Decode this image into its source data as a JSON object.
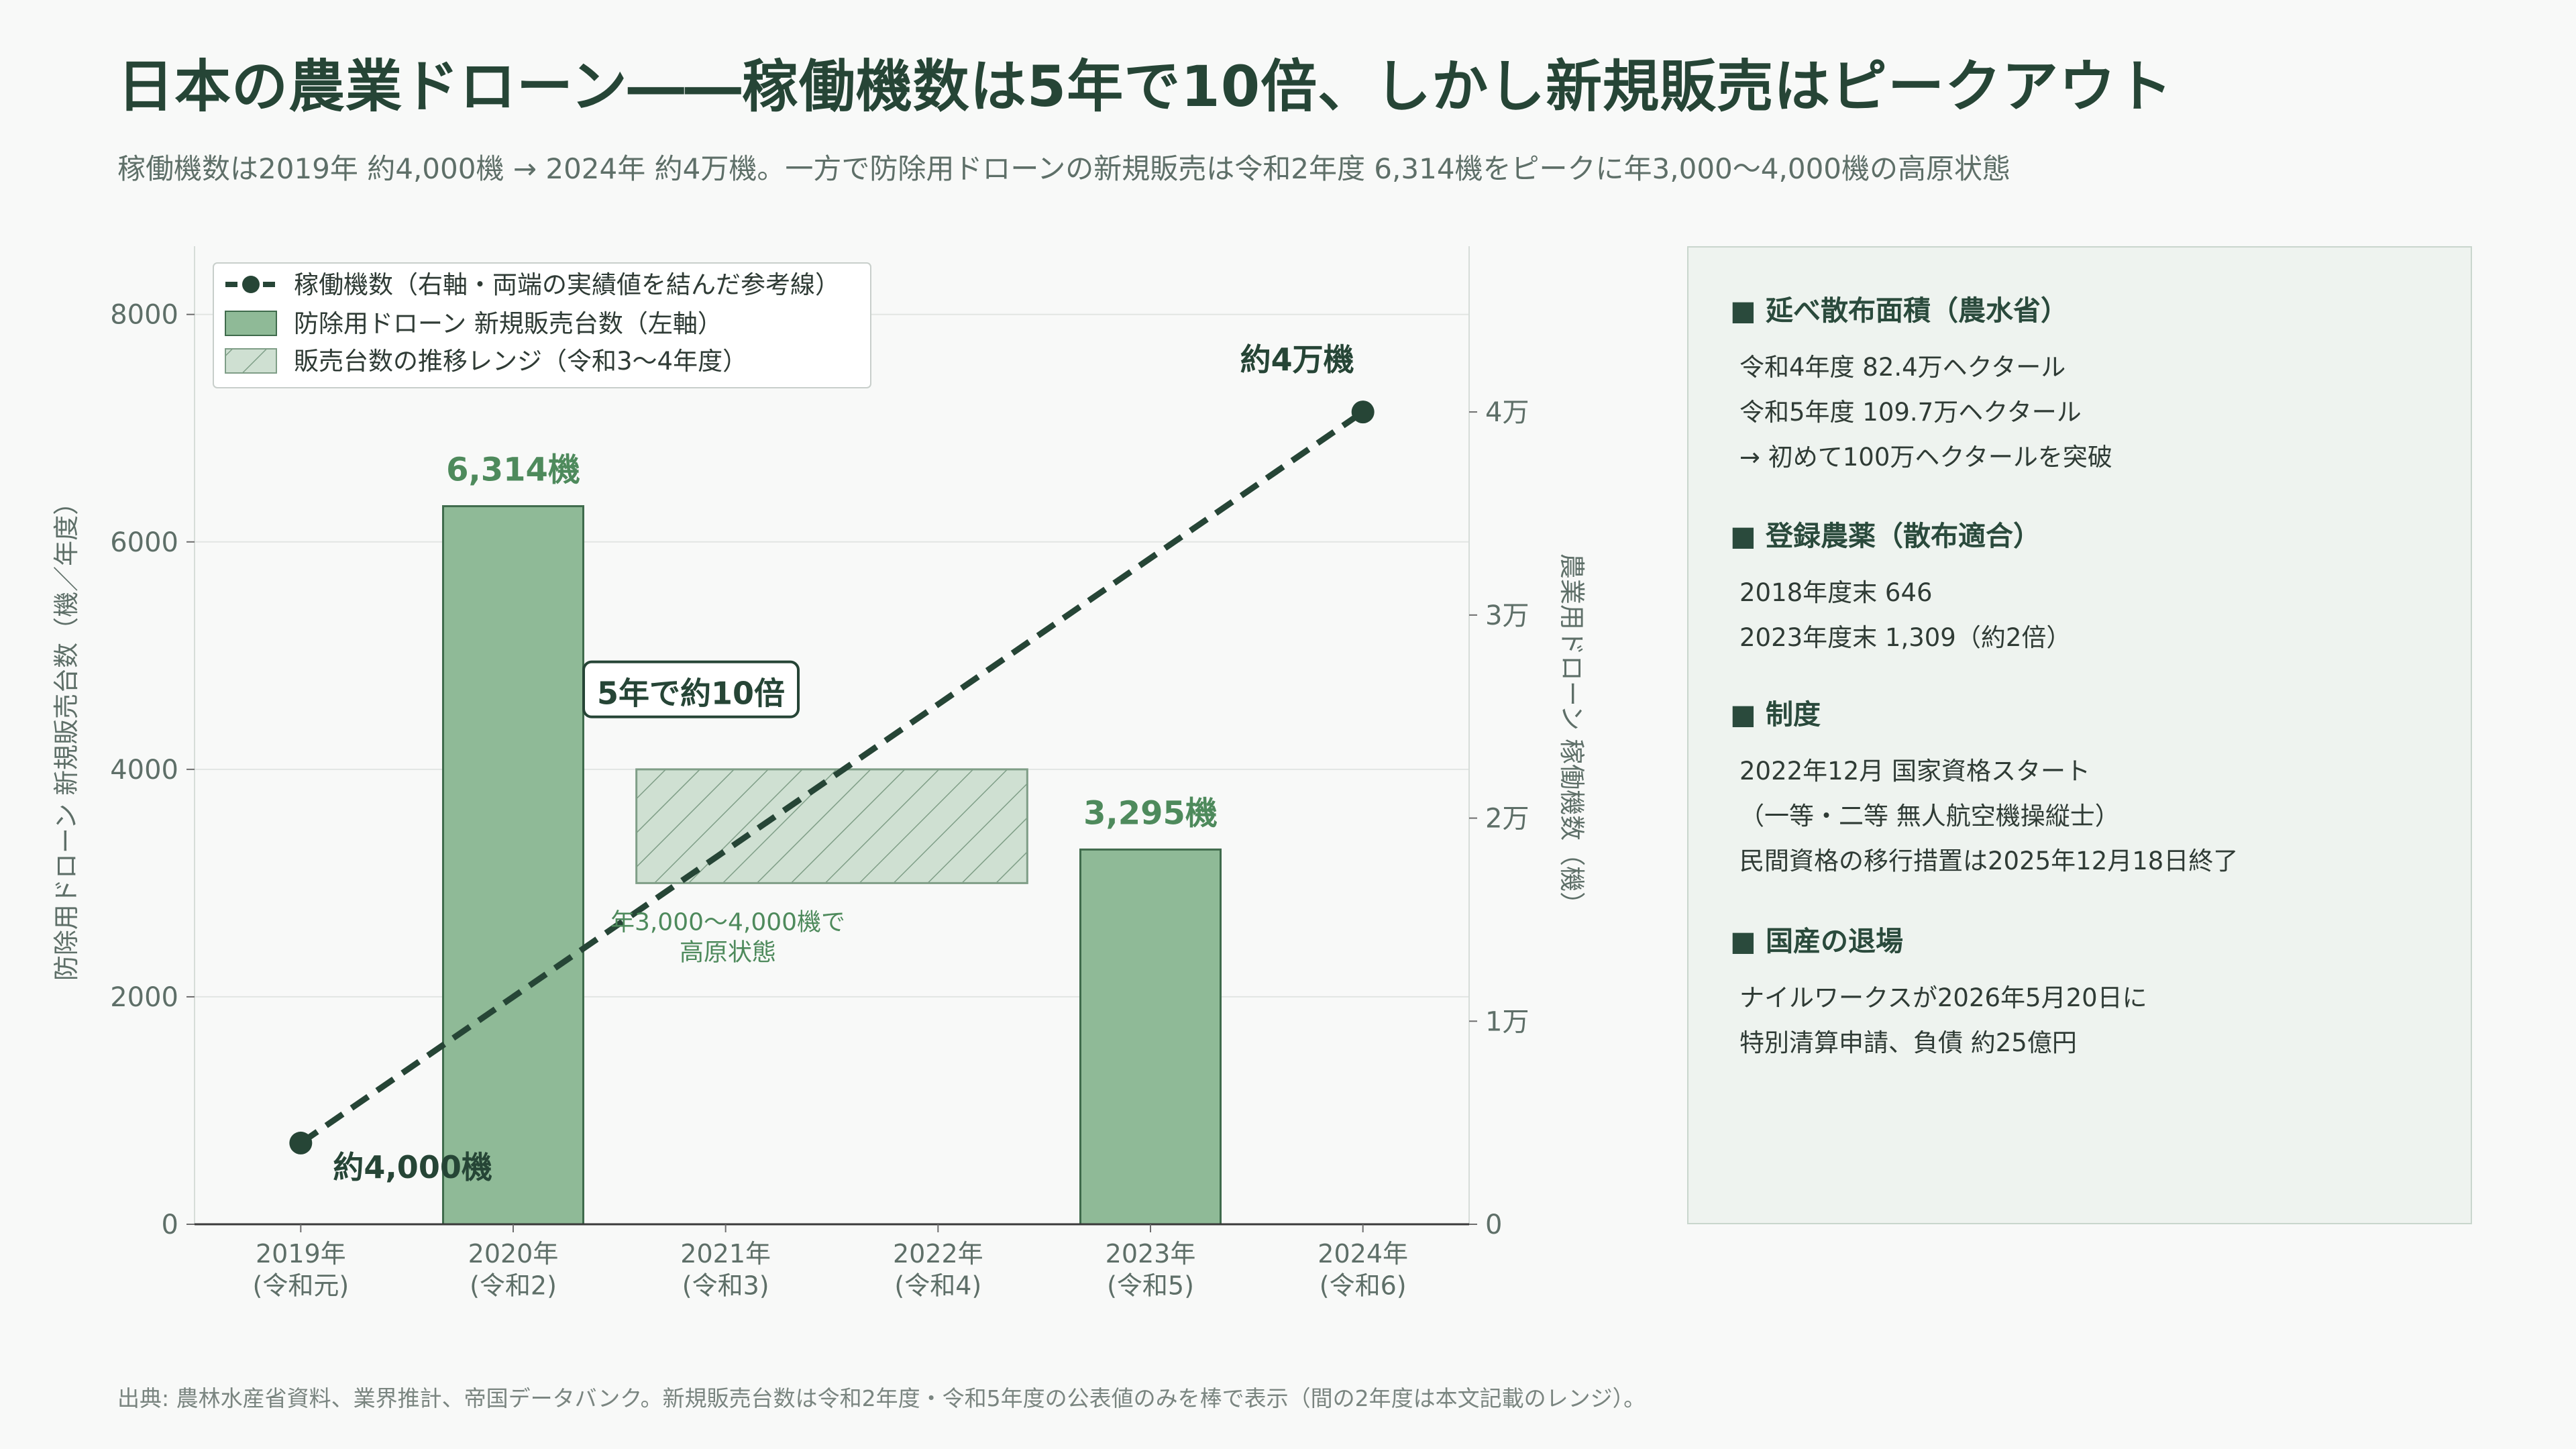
{
  "header": {
    "title": "日本の農業ドローン――稼働機数は5年で10倍、しかし新規販売はピークアウト",
    "subtitle": "稼働機数は2019年 約4,000機 → 2024年 約4万機。一方で防除用ドローンの新規販売は令和2年度 6,314機をピークに年3,000〜4,000機の高原状態"
  },
  "chart_data": {
    "type": "bar",
    "categories": [
      "2019年\n(令和元)",
      "2020年\n(令和2)",
      "2021年\n(令和3)",
      "2022年\n(令和4)",
      "2023年\n(令和5)",
      "2024年\n(令和6)"
    ],
    "ylabel": "防除用ドローン 新規販売台数（機／年度）",
    "y2label": "農業用ドローン 稼働機数（機）",
    "ylim": [
      0,
      8600
    ],
    "y2lim": [
      0,
      48163
    ],
    "yticks": [
      "0",
      "2000",
      "4000",
      "6000",
      "8000"
    ],
    "y2ticks": [
      "0",
      "1万",
      "2万",
      "3万",
      "4万"
    ],
    "grid": true,
    "legend_position": "top-left",
    "series": [
      {
        "name": "防除用ドローン 新規販売台数（左軸）",
        "type": "bar",
        "axis": "left",
        "values": [
          null,
          6314,
          null,
          null,
          3295,
          null
        ],
        "data_labels": [
          null,
          "6,314機",
          null,
          null,
          "3,295機",
          null
        ],
        "color": "#8fba97"
      },
      {
        "name": "稼働機数（右軸・両端の実績値を結んだ参考線）",
        "type": "line",
        "axis": "right",
        "style": "dashed",
        "points": [
          {
            "category": 0,
            "value": 4000,
            "label": "約4,000機"
          },
          {
            "category": 5,
            "value": 40000,
            "label": "約4万機"
          }
        ],
        "color": "#264536"
      },
      {
        "name": "販売台数の推移レンジ（令和3〜4年度）",
        "type": "range",
        "axis": "left",
        "from_category": 2,
        "to_category": 3,
        "low": 3000,
        "high": 4000,
        "color": "#cfe0d2"
      }
    ],
    "annotations": [
      {
        "text": "5年で約10倍"
      },
      {
        "text": "年3,000〜4,000機で\n高原状態"
      }
    ]
  },
  "side_panel": {
    "sections": [
      {
        "title": "■ 延べ散布面積（農水省）",
        "lines": [
          "令和4年度  82.4万ヘクタール",
          "令和5年度  109.7万ヘクタール",
          "→ 初めて100万ヘクタールを突破"
        ]
      },
      {
        "title": "■ 登録農薬（散布適合）",
        "lines": [
          "2018年度末  646",
          "2023年度末  1,309（約2倍）"
        ]
      },
      {
        "title": "■ 制度",
        "lines": [
          "2022年12月 国家資格スタート",
          "（一等・二等 無人航空機操縦士）",
          "民間資格の移行措置は2025年12月18日終了"
        ]
      },
      {
        "title": "■ 国産の退場",
        "lines": [
          "ナイルワークスが2026年5月20日に",
          "特別清算申請、負債 約25億円"
        ]
      }
    ]
  },
  "footer": {
    "source": "出典: 農林水産省資料、業界推計、帝国データバンク。新規販売台数は令和2年度・令和5年度の公表値のみを棒で表示（間の2年度は本文記載のレンジ）。"
  },
  "colors": {
    "bar": "#8fba97",
    "bar_stroke": "#3f6b4c",
    "line": "#264536",
    "range_fill": "#cfe0d2",
    "accent_text": "#4e8a5c",
    "panel_bg": "#eef3ef"
  }
}
